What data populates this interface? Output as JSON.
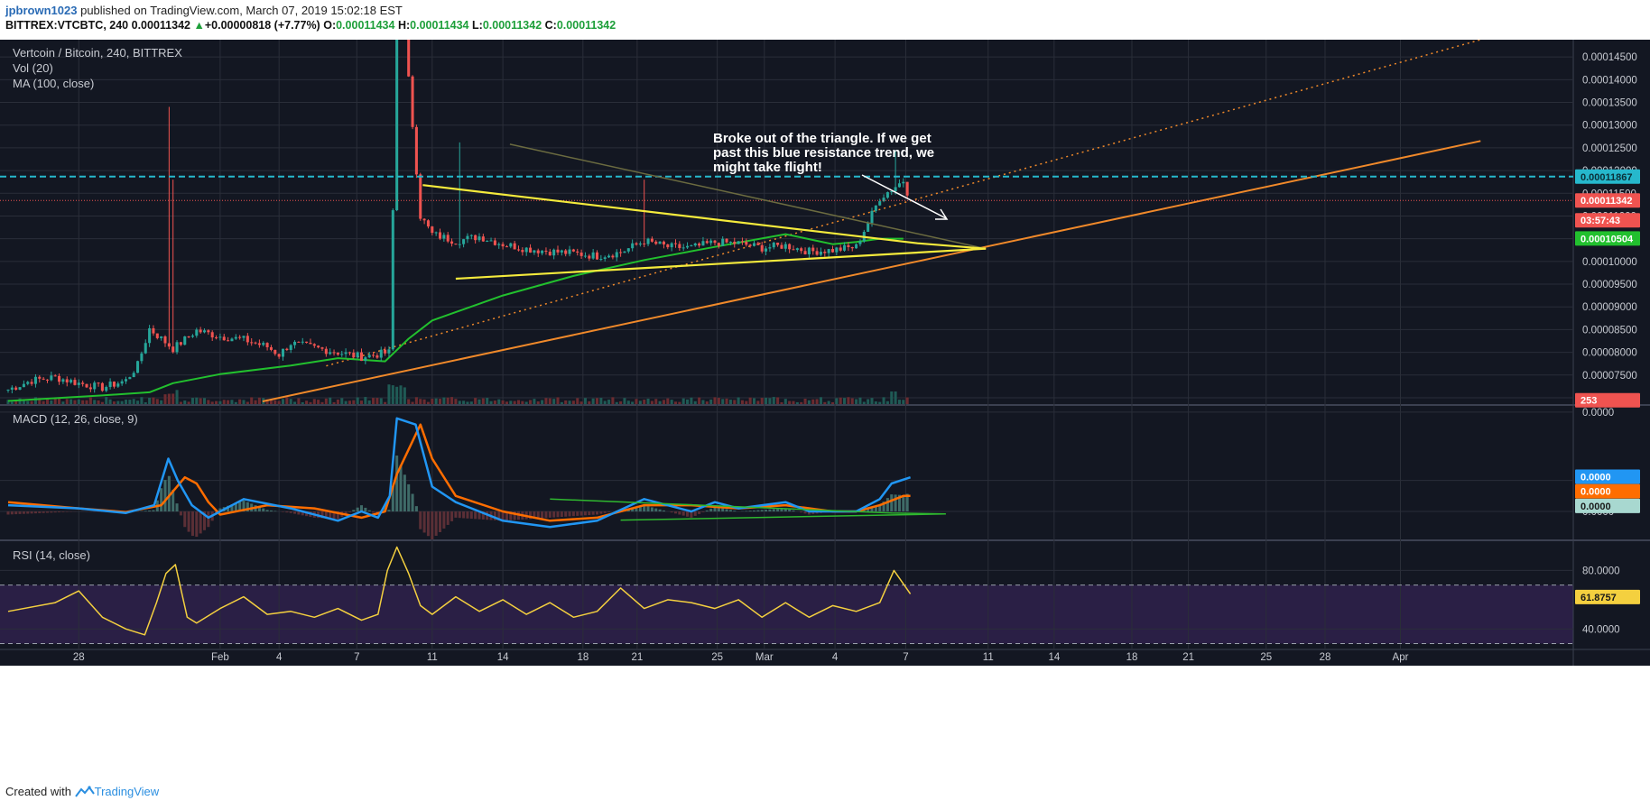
{
  "header": {
    "user": "jpbrown1023",
    "published": "published on TradingView.com, March 07, 2019 15:02:18 EST",
    "symbol": "BITTREX:VTCBTC, 240",
    "last": "0.00011342",
    "change_arrow": "▲",
    "change": "+0.00000818 (+7.77%)",
    "o_label": "O:",
    "o_value": "0.00011434",
    "h_label": "H:",
    "h_value": "0.00011434",
    "l_label": "L:",
    "l_value": "0.00011342",
    "c_label": "C:",
    "c_value": "0.00011342"
  },
  "panes": {
    "main_title": "Vertcoin / Bitcoin, 240, BITTREX",
    "vol_label": "Vol (20)",
    "ma_label": "MA (100, close)",
    "macd_label": "MACD (12, 26, close, 9)",
    "rsi_label": "RSI (14, close)"
  },
  "annotation": {
    "lines": [
      "Broke  out of the triangle. If we get",
      "past this blue resistance trend, we",
      "might take flight!"
    ]
  },
  "footer": {
    "created_with": "Created with",
    "brand": "TradingView"
  },
  "colors": {
    "background": "#131722",
    "grid": "#2a2e39",
    "up": "#26a69a",
    "down": "#ef5350",
    "ma": "#22c02e",
    "triangle": "#f5eb3c",
    "trend": "#f0892a",
    "resistance": "#26b8cc",
    "macd": "#2196f3",
    "signal": "#ff6d00",
    "rsi": "#f4d03f",
    "rsi_band": "#2a1f45"
  },
  "chart_data": [
    {
      "type": "candlestick",
      "title": "Vertcoin / Bitcoin, 240, BITTREX",
      "x_ticks": [
        "28",
        "Feb",
        "4",
        "7",
        "11",
        "14",
        "18",
        "21",
        "25",
        "Mar",
        "4",
        "7",
        "11",
        "14",
        "18",
        "21",
        "25",
        "28",
        "Apr"
      ],
      "y_ticks": [
        "0.00007000",
        "0.00007500",
        "0.00008000",
        "0.00008500",
        "0.00009000",
        "0.00009500",
        "0.00010000",
        "0.00010500",
        "0.00011000",
        "0.00011500",
        "0.00012000",
        "0.00012500",
        "0.00013000",
        "0.00013500",
        "0.00014000",
        "0.00014500"
      ],
      "ylim": [
        6.86e-05,
        0.0001488
      ],
      "price_tags": [
        {
          "label": "0.00011867",
          "value": 0.00011867,
          "color": "#26b8cc"
        },
        {
          "label": "0.00011342",
          "value": 0.00011342,
          "color": "#ef5350"
        },
        {
          "label": "03:57:43",
          "value": 0.00010905,
          "color": "#ef5350"
        },
        {
          "label": "0.00010504",
          "value": 0.00010504,
          "color": "#22c02e"
        },
        {
          "label": "253",
          "value": 6.945e-05,
          "color": "#ef5350"
        }
      ],
      "resistance_level": 0.00011867,
      "last_price": 0.00011342,
      "anchors_x": [
        0,
        1,
        2,
        3,
        4,
        5,
        5.5,
        6,
        7,
        8,
        9,
        10,
        11,
        11.5,
        12,
        13
      ],
      "anchors_close": [
        7.18e-05,
        7.38e-05,
        7.45e-05,
        7.32e-05,
        7.22e-05,
        7.38e-05,
        7.72e-05,
        8.52e-05,
        8.08e-05,
        8.48e-05,
        8.35e-05,
        8.28e-05,
        8.12e-05,
        7.95e-05,
        8.2e-05,
        8.1e-05
      ],
      "anchors_x_b": [
        17,
        17.5,
        18,
        19,
        20,
        21,
        22,
        23,
        24,
        25,
        26,
        27,
        28,
        29,
        30,
        31,
        32,
        33,
        34,
        35,
        36,
        37,
        38,
        38.3
      ],
      "anchors_close_b": [
        0.00014,
        0.00011,
        0.000106,
        0.0001045,
        0.0001055,
        0.0001038,
        0.0001028,
        0.0001022,
        0.0001018,
        0.0001012,
        0.000102,
        0.0001045,
        0.0001032,
        0.000103,
        0.0001042,
        0.000104,
        0.000103,
        0.0001035,
        0.0001022,
        0.0001025,
        0.0001032,
        0.000114,
        0.0001178,
        0.0001134
      ],
      "ma_x": [
        0,
        4,
        6,
        7,
        9,
        12,
        14,
        16,
        17,
        18,
        21,
        24,
        27,
        30,
        33,
        35,
        36,
        37,
        38
      ],
      "ma_y": [
        6.93e-05,
        7.05e-05,
        7.12e-05,
        7.32e-05,
        7.52e-05,
        7.71e-05,
        7.87e-05,
        7.8e-05,
        8.3e-05,
        8.7e-05,
        9.25e-05,
        9.68e-05,
        0.0001003,
        0.0001032,
        0.000106,
        0.0001038,
        0.0001043,
        0.000105,
        0.000105
      ],
      "triangle_upper": [
        [
          17.6,
          0.0001168
        ],
        [
          38.6,
          0.000104
        ],
        [
          41.5,
          0.0001028
        ]
      ],
      "triangle_lower": [
        [
          19.0,
          9.62e-05
        ],
        [
          41.5,
          0.0001028
        ]
      ],
      "trend_line": [
        [
          10.8,
          6.92e-05
        ],
        [
          62.5,
          0.0001265
        ]
      ],
      "dotted_line": [
        [
          13.5,
          7.7e-05
        ],
        [
          62.5,
          0.0001488
        ]
      ]
    },
    {
      "type": "line",
      "title": "MACD (12, 26, close, 9)",
      "series": [
        {
          "name": "MACD",
          "x": [
            0,
            3,
            5,
            6.2,
            6.8,
            7.2,
            7.8,
            8.5,
            10,
            12,
            14,
            15,
            15.7,
            16.2,
            16.5,
            17.3,
            18,
            19,
            21,
            23,
            25,
            27,
            29,
            30,
            31,
            33,
            34,
            36,
            37,
            37.5,
            38.3
          ],
          "y": [
            2e-06,
            1e-06,
            -5e-07,
            2e-06,
            1.7e-05,
            1e-05,
            2e-06,
            -2e-06,
            4e-06,
            1e-06,
            -3e-06,
            0.0,
            -2e-06,
            5e-06,
            3e-05,
            2.8e-05,
            8e-06,
            3e-06,
            -3e-06,
            -5e-06,
            -3e-06,
            4e-06,
            0.0,
            3e-06,
            1e-06,
            3e-06,
            0.0,
            0.0,
            4e-06,
            9e-06,
            1.1e-05
          ]
        },
        {
          "name": "Signal",
          "x": [
            0,
            3,
            5,
            6.5,
            7.5,
            8,
            8.5,
            9,
            11,
            13,
            15,
            16,
            16.5,
            17.5,
            18,
            19,
            21,
            23,
            25,
            27,
            29,
            31,
            33,
            35,
            36,
            37,
            38,
            38.3
          ],
          "y": [
            3e-06,
            1e-06,
            -2e-07,
            2e-06,
            1.1e-05,
            9e-06,
            3e-06,
            -1e-06,
            2e-06,
            1e-06,
            -2e-06,
            0.0,
            1.2e-05,
            2.8e-05,
            1.7e-05,
            5e-06,
            0.0,
            -3e-06,
            -2e-06,
            2e-06,
            2e-06,
            1e-06,
            2e-06,
            0.0,
            0.0,
            2e-06,
            5e-06,
            5e-06
          ]
        }
      ],
      "y_ticks": [
        "0.0000",
        "0.0000",
        "0.0000"
      ],
      "value_tags": [
        {
          "label": "0.0000",
          "color": "#2196f3"
        },
        {
          "label": "0.0000",
          "color": "#ff6d00"
        },
        {
          "label": "0.0000",
          "color": "#a8d8d0"
        }
      ],
      "ylim": [
        -9e-06,
        3.4e-05
      ]
    },
    {
      "type": "line",
      "title": "RSI (14, close)",
      "series": [
        {
          "name": "RSI",
          "x": [
            0,
            2,
            3,
            4,
            5,
            5.8,
            6.3,
            6.7,
            7.1,
            7.6,
            8,
            9,
            10,
            11,
            12,
            13,
            14,
            15,
            15.7,
            16.1,
            16.5,
            17,
            17.5,
            18,
            19,
            20,
            21,
            22,
            23,
            24,
            25,
            26,
            27,
            28,
            29,
            30,
            31,
            32,
            33,
            34,
            35,
            36,
            37,
            37.6,
            38.3
          ],
          "y": [
            52,
            58,
            66,
            48,
            40,
            36,
            58,
            78,
            84,
            48,
            44,
            54,
            62,
            50,
            52,
            48,
            54,
            46,
            50,
            80,
            96,
            78,
            56,
            50,
            62,
            52,
            60,
            50,
            58,
            48,
            52,
            68,
            54,
            60,
            58,
            54,
            60,
            48,
            58,
            48,
            56,
            52,
            58,
            80,
            64
          ]
        }
      ],
      "y_ticks": [
        "80.0000",
        "40.0000"
      ],
      "value_tag": {
        "label": "61.8757",
        "color": "#f4d03f"
      },
      "band": [
        30,
        70
      ],
      "ylim": [
        26,
        100
      ]
    }
  ]
}
